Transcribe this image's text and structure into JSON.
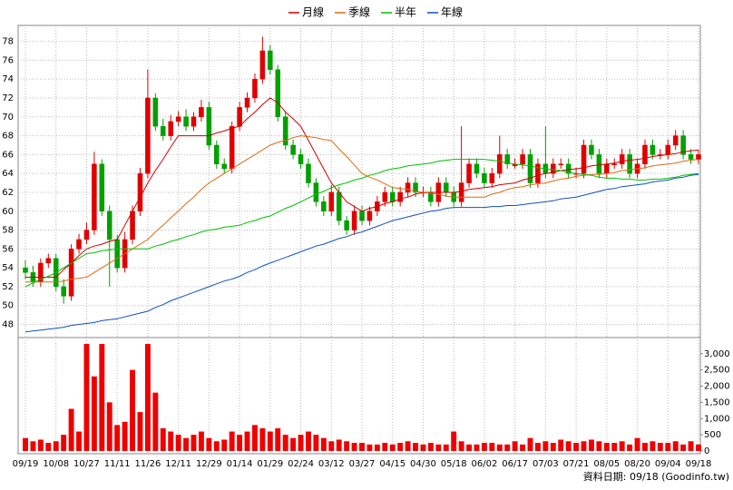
{
  "chart_data": {
    "type": "candlestick",
    "categories": [
      "09/19",
      null,
      null,
      null,
      "10/08",
      null,
      null,
      null,
      "10/27",
      null,
      null,
      null,
      "11/11",
      null,
      null,
      null,
      "11/26",
      null,
      null,
      null,
      "12/11",
      null,
      null,
      null,
      "12/29",
      null,
      null,
      null,
      "01/14",
      null,
      null,
      null,
      "01/29",
      null,
      null,
      null,
      "02/24",
      null,
      null,
      null,
      "03/12",
      null,
      null,
      null,
      "03/27",
      null,
      null,
      null,
      "04/15",
      null,
      null,
      null,
      "04/30",
      null,
      null,
      null,
      "05/18",
      null,
      null,
      null,
      "06/02",
      null,
      null,
      null,
      "06/17",
      null,
      null,
      null,
      "07/03",
      null,
      null,
      null,
      "07/21",
      null,
      null,
      null,
      "08/05",
      null,
      null,
      null,
      "08/20",
      null,
      null,
      null,
      "09/04",
      null,
      null,
      null,
      "09/18"
    ],
    "open": [
      54,
      53.5,
      52.5,
      54.5,
      55,
      52,
      51,
      56,
      57,
      58,
      65,
      60,
      57,
      54,
      57,
      60,
      64,
      72,
      69,
      68,
      69.5,
      70,
      69,
      70,
      71,
      67,
      65,
      64.5,
      69,
      71,
      72,
      74,
      77,
      75,
      70,
      67,
      66,
      65,
      63,
      61,
      60,
      62,
      59,
      58,
      60,
      59,
      60,
      61,
      62,
      61,
      62,
      63,
      62,
      62,
      61,
      63,
      62,
      61,
      63,
      65,
      64,
      63,
      64,
      66,
      64.8,
      65,
      66,
      63,
      65,
      64,
      65,
      65,
      64,
      64,
      67,
      66,
      64,
      65,
      65,
      66,
      64,
      65,
      67,
      66,
      66,
      67,
      68,
      66,
      65.5
    ],
    "high": [
      54.8,
      54.2,
      55,
      55.5,
      55.5,
      52.8,
      56.5,
      57.6,
      58.8,
      66.3,
      65.5,
      60.6,
      57.5,
      57.8,
      60.6,
      64.6,
      75,
      72.5,
      69.8,
      70.2,
      70.6,
      70.8,
      70.5,
      71.8,
      71.6,
      67.5,
      65.6,
      69.5,
      71.6,
      72.6,
      74.6,
      78.5,
      77.6,
      75.5,
      70.6,
      67.6,
      66.6,
      65.6,
      63.5,
      61.6,
      62.8,
      62.6,
      59.5,
      60.6,
      60.6,
      60.5,
      61.6,
      62.6,
      62.6,
      62.6,
      63.6,
      63.6,
      62.6,
      62.6,
      63.6,
      63.6,
      62.6,
      69,
      65.6,
      65.6,
      64.6,
      64.6,
      68,
      66.6,
      65.6,
      66.6,
      66.6,
      65.6,
      69,
      65.6,
      65.6,
      65.6,
      64.6,
      67.6,
      67.6,
      66.6,
      65.6,
      65.6,
      66.6,
      66.6,
      65.6,
      67.6,
      67.6,
      66.6,
      67.6,
      68.6,
      68.6,
      66.6,
      66.5
    ],
    "low": [
      52.8,
      52,
      52,
      54,
      51.5,
      50.2,
      50.5,
      55.5,
      56.5,
      57.5,
      59.5,
      52,
      53.5,
      53.5,
      56.5,
      59.5,
      63.5,
      68.5,
      67.5,
      67.5,
      69,
      68.5,
      68.5,
      69.5,
      66.5,
      64.5,
      64,
      64,
      68.5,
      70.5,
      71.5,
      73.5,
      74.5,
      69.5,
      66.5,
      65.5,
      64.5,
      62.5,
      60.5,
      59.5,
      59.5,
      58.5,
      57.5,
      57.5,
      58.5,
      58.5,
      59.5,
      60.5,
      60.5,
      60.5,
      61.5,
      61.5,
      61.5,
      60.5,
      60.5,
      61.5,
      60.5,
      60.5,
      62.5,
      63.5,
      62.5,
      62.5,
      63.5,
      64.5,
      64.5,
      64.5,
      62.5,
      62.5,
      63.5,
      63.5,
      64.5,
      63.5,
      63.5,
      63.5,
      65.5,
      63.5,
      63.5,
      64.5,
      64.5,
      63.5,
      63.5,
      64.5,
      65.5,
      65.5,
      65.5,
      66.5,
      65.5,
      65,
      65
    ],
    "close": [
      53.5,
      52.5,
      54.5,
      55,
      52,
      51,
      56,
      57,
      58,
      65,
      60,
      57,
      54,
      57,
      60,
      64,
      72,
      69,
      68,
      69.5,
      70,
      69,
      70,
      71,
      67,
      65,
      64.5,
      69,
      71,
      72,
      74,
      77,
      75,
      70,
      67,
      66,
      65,
      63,
      61,
      60,
      62,
      59,
      58,
      60,
      59,
      60,
      61,
      62,
      61,
      62,
      63,
      62,
      62,
      61,
      63,
      62,
      61,
      63,
      65,
      64,
      63,
      64,
      66,
      65,
      65,
      66,
      63,
      65,
      64,
      65,
      65,
      64,
      64,
      67,
      66,
      64,
      65,
      65,
      66,
      64,
      65,
      67,
      66,
      66,
      67,
      68,
      66,
      65.5,
      66
    ],
    "up_color": "#e00000",
    "down_color": "#00a000",
    "ylim": [
      46.8,
      79.5
    ],
    "yticks": [
      48,
      50,
      52,
      54,
      56,
      58,
      60,
      62,
      64,
      66,
      68,
      70,
      72,
      74,
      76,
      78
    ],
    "grid": true,
    "series": [
      {
        "name": "月線",
        "color": "#d00000",
        "values": [
          53,
          53,
          53,
          53,
          53,
          53.8,
          54.5,
          55.3,
          56,
          56.3,
          56.5,
          56.8,
          57,
          58.5,
          60,
          61.5,
          63,
          64.3,
          65.5,
          66.8,
          68,
          68,
          68,
          68,
          68,
          68.3,
          68.5,
          68.8,
          69,
          69.8,
          70.5,
          71.3,
          72,
          71.5,
          70.5,
          69.8,
          69,
          67.5,
          66,
          64.5,
          63,
          62,
          61,
          60.5,
          60,
          60.3,
          60.5,
          60.8,
          61,
          61.3,
          61.5,
          61.8,
          62,
          62,
          62,
          62,
          62,
          62.1,
          62.3,
          62.4,
          62.5,
          62.6,
          62.8,
          62.9,
          63,
          63.3,
          63.5,
          63.8,
          64,
          64.1,
          64.3,
          64.4,
          64.5,
          64.6,
          64.8,
          64.9,
          65,
          65.1,
          65.3,
          65.4,
          65.5,
          65.6,
          65.8,
          65.9,
          66,
          66.1,
          66.3,
          66.4,
          66.5
        ]
      },
      {
        "name": "季線",
        "color": "#e06a10",
        "values": [
          52.5,
          52.5,
          52.5,
          52.5,
          52.5,
          52.6,
          52.8,
          52.9,
          53,
          53.5,
          54,
          54.5,
          55,
          55.5,
          56,
          56.5,
          57,
          57.8,
          58.5,
          59.3,
          60,
          60.8,
          61.5,
          62.3,
          63,
          63.5,
          64,
          64.5,
          65,
          65.5,
          66,
          66.5,
          67,
          67.3,
          67.5,
          67.8,
          68,
          67.9,
          67.8,
          67.6,
          67.5,
          66.6,
          65.8,
          64.9,
          64,
          63.6,
          63.3,
          62.9,
          62.5,
          62.4,
          62.3,
          62.1,
          62,
          61.9,
          61.8,
          61.6,
          61.5,
          61.5,
          61.5,
          61.5,
          61.5,
          61.8,
          62,
          62.3,
          62.5,
          62.6,
          62.8,
          62.9,
          63,
          63.2,
          63.4,
          63.5,
          63.7,
          63.8,
          63.9,
          63.9,
          64,
          64.1,
          64.3,
          64.4,
          64.5,
          64.6,
          64.8,
          64.9,
          65,
          65.1,
          65.3,
          65.4,
          65.5
        ]
      },
      {
        "name": "半年",
        "color": "#00c000",
        "values": [
          52,
          52.4,
          52.8,
          53.1,
          53.5,
          54,
          54.5,
          55,
          55.5,
          55.6,
          55.8,
          55.9,
          56,
          56,
          56,
          56,
          56,
          56.3,
          56.5,
          56.8,
          57,
          57.3,
          57.5,
          57.8,
          58,
          58.1,
          58.3,
          58.4,
          58.5,
          58.8,
          59,
          59.3,
          59.5,
          59.9,
          60.3,
          60.6,
          61,
          61.4,
          61.8,
          62.1,
          62.5,
          62.8,
          63,
          63.3,
          63.5,
          63.8,
          64,
          64.3,
          64.5,
          64.6,
          64.8,
          64.9,
          65,
          65.1,
          65.3,
          65.4,
          65.5,
          65.5,
          65.5,
          65.5,
          65.5,
          65.4,
          65.3,
          65.1,
          65,
          64.9,
          64.8,
          64.6,
          64.5,
          64.4,
          64.3,
          64.1,
          64,
          63.9,
          63.8,
          63.6,
          63.5,
          63.5,
          63.4,
          63.4,
          63.3,
          63.3,
          63.4,
          63.4,
          63.5,
          63.6,
          63.8,
          63.9,
          64
        ]
      },
      {
        "name": "年線",
        "color": "#1050c0",
        "values": [
          47.2,
          47.3,
          47.4,
          47.5,
          47.6,
          47.7,
          47.9,
          48,
          48.1,
          48.2,
          48.4,
          48.5,
          48.6,
          48.8,
          49,
          49.2,
          49.4,
          49.8,
          50.1,
          50.5,
          50.8,
          51.1,
          51.4,
          51.7,
          52,
          52.3,
          52.6,
          52.8,
          53.1,
          53.5,
          53.8,
          54.2,
          54.5,
          54.8,
          55.1,
          55.4,
          55.7,
          56,
          56.3,
          56.5,
          56.8,
          57.1,
          57.3,
          57.6,
          57.8,
          58.1,
          58.4,
          58.7,
          59,
          59.2,
          59.4,
          59.6,
          59.8,
          60,
          60.1,
          60.3,
          60.4,
          60.4,
          60.4,
          60.4,
          60.4,
          60.5,
          60.5,
          60.6,
          60.6,
          60.7,
          60.8,
          60.9,
          61,
          61.1,
          61.3,
          61.4,
          61.5,
          61.7,
          61.9,
          62.1,
          62.3,
          62.4,
          62.6,
          62.7,
          62.8,
          62.9,
          63.1,
          63.2,
          63.3,
          63.5,
          63.6,
          63.8,
          63.9
        ]
      }
    ],
    "volume": {
      "color": "#ee0000",
      "values": [
        400,
        300,
        350,
        250,
        300,
        500,
        1300,
        600,
        3300,
        2300,
        3300,
        1500,
        800,
        900,
        2500,
        1200,
        3300,
        1800,
        700,
        600,
        500,
        400,
        500,
        600,
        400,
        300,
        350,
        600,
        500,
        600,
        800,
        700,
        600,
        700,
        500,
        400,
        500,
        600,
        500,
        400,
        300,
        350,
        300,
        250,
        250,
        200,
        200,
        250,
        200,
        250,
        300,
        250,
        200,
        250,
        200,
        200,
        600,
        300,
        200,
        200,
        250,
        250,
        200,
        200,
        300,
        200,
        400,
        250,
        300,
        250,
        350,
        300,
        250,
        300,
        350,
        300,
        250,
        250,
        300,
        200,
        400,
        250,
        300,
        250,
        250,
        300,
        200,
        300,
        200
      ],
      "ylim": [
        0,
        3330
      ],
      "yticks": [
        0,
        500,
        {
          "value": 1000,
          "label": "1,000"
        },
        {
          "value": 1500,
          "label": "1,500"
        },
        {
          "value": 2000,
          "label": "2,000"
        },
        {
          "value": 2500,
          "label": "2,500"
        },
        {
          "value": 3000,
          "label": "3,000"
        }
      ]
    },
    "footer": "資料日期: 09/18 (Goodinfo.tw)"
  }
}
